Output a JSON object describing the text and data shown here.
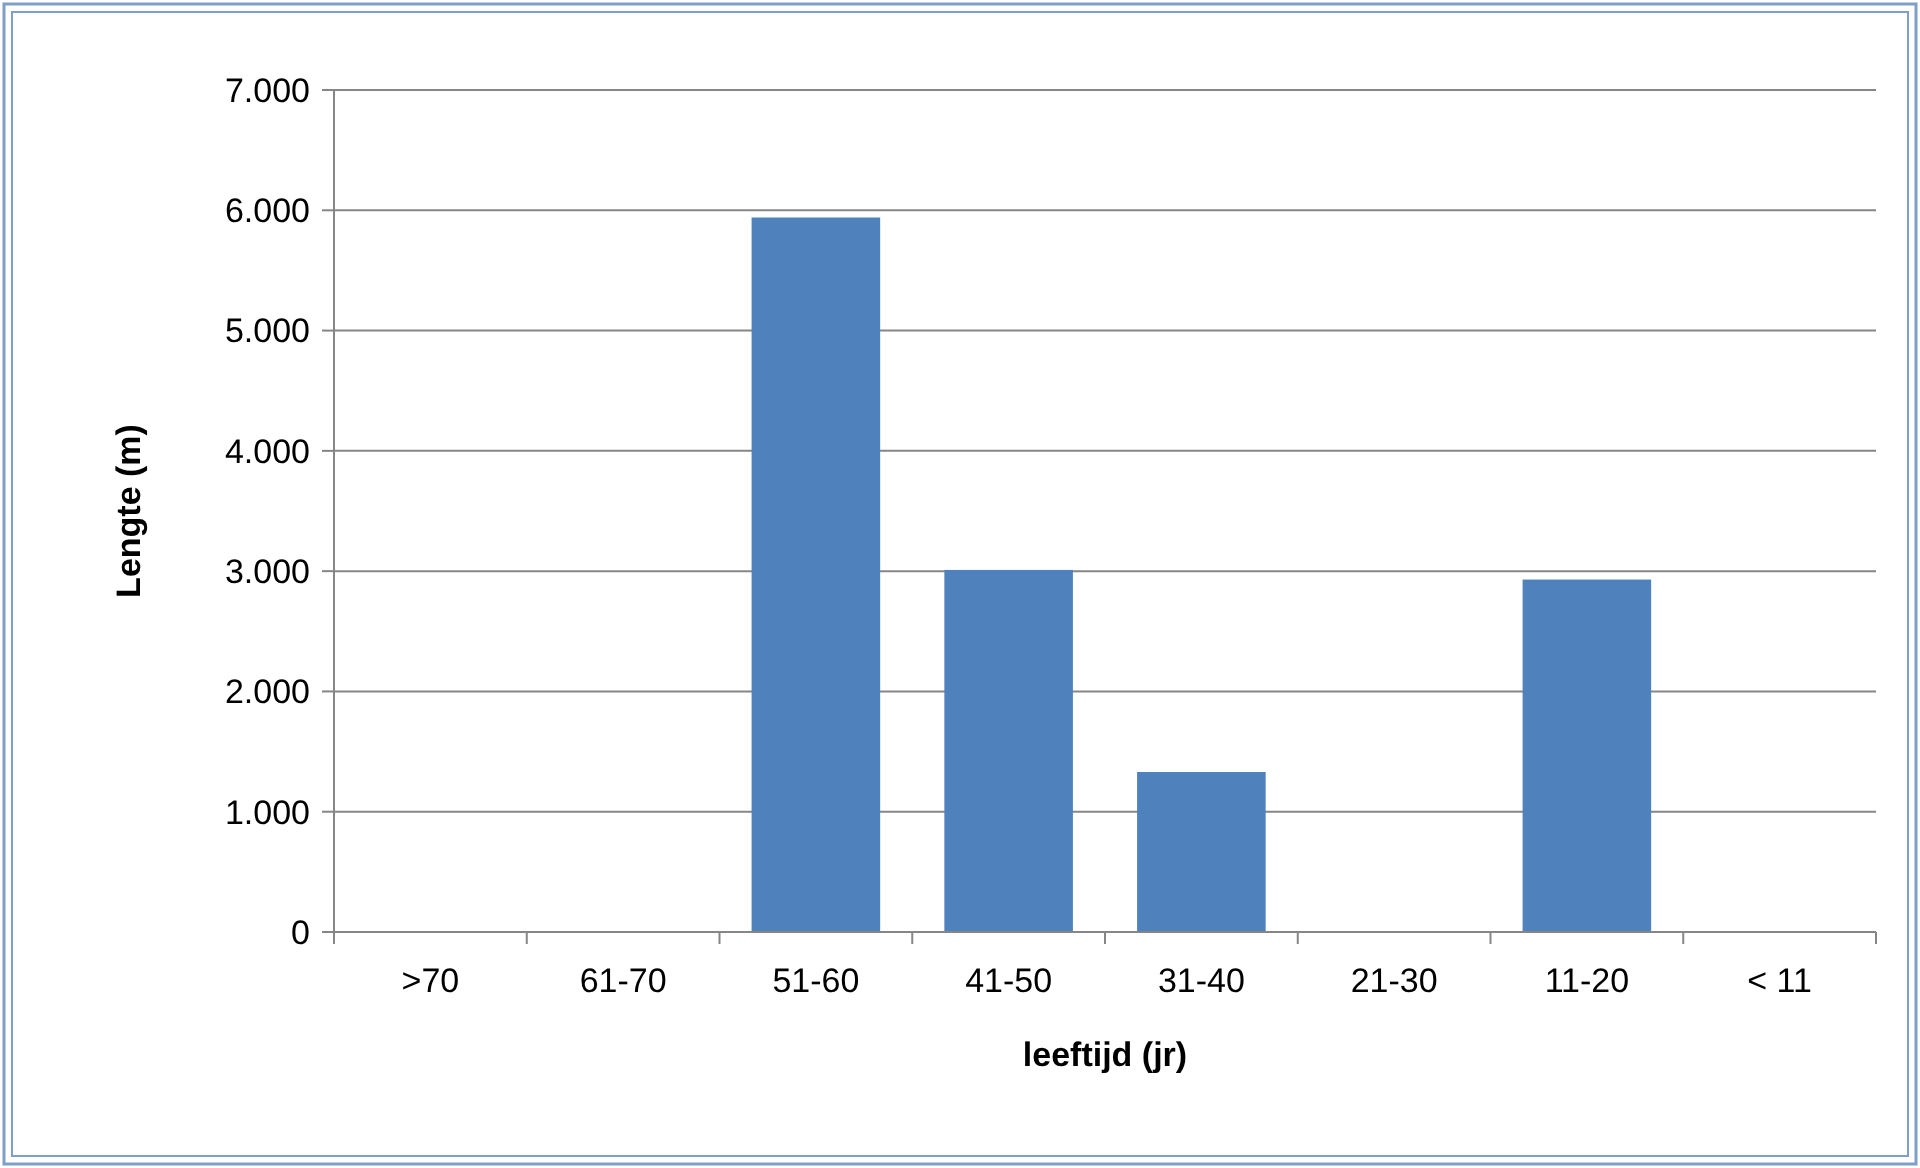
{
  "chart_data": {
    "type": "bar",
    "xlabel": "leeftijd (jr)",
    "ylabel": "Lengte (m)",
    "categories": [
      ">70",
      "61-70",
      "51-60",
      "41-50",
      "31-40",
      "21-30",
      "11-20",
      "< 11"
    ],
    "values": [
      0,
      0,
      5940,
      3010,
      1330,
      0,
      2930,
      0
    ],
    "color": "#4f81bd",
    "ylim": [
      0,
      7000
    ],
    "yticks": [
      0,
      {
        "value": 1000,
        "label": "1.000"
      },
      {
        "value": 2000,
        "label": "2.000"
      },
      {
        "value": 3000,
        "label": "3.000"
      },
      {
        "value": 4000,
        "label": "4.000"
      },
      {
        "value": 5000,
        "label": "5.000"
      },
      {
        "value": 6000,
        "label": "6.000"
      },
      {
        "value": 7000,
        "label": "7.000"
      }
    ],
    "grid": "y"
  }
}
